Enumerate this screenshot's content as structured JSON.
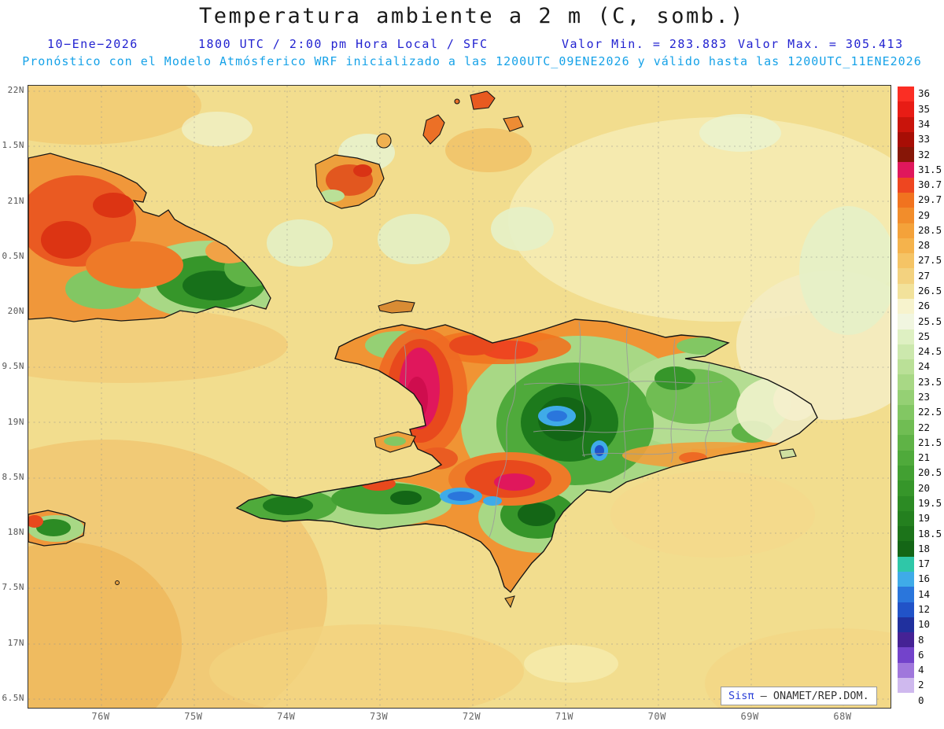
{
  "title": "Temperatura ambiente a 2 m (C, somb.)",
  "header": {
    "date": "10−Ene−2026",
    "run_info": "1800 UTC / 2:00 pm Hora Local / SFC",
    "min_value": "Valor Min. = 283.883",
    "max_value": "Valor Max. = 305.413",
    "model_info": "Pronóstico con el Modelo Atmósferico WRF inicializado a las 1200UTC_09ENE2026 y válido hasta las 1200UTC_11ENE2026"
  },
  "axes": {
    "y_ticks": [
      "22N",
      "1.5N",
      "21N",
      "0.5N",
      "20N",
      "9.5N",
      "19N",
      "8.5N",
      "18N",
      "7.5N",
      "17N",
      "6.5N"
    ],
    "x_ticks": [
      "76W",
      "75W",
      "74W",
      "73W",
      "72W",
      "71W",
      "70W",
      "69W",
      "68W"
    ]
  },
  "colorbar": {
    "units": "C",
    "levels": [
      {
        "label": "36",
        "color": "#fb2e24"
      },
      {
        "label": "35",
        "color": "#e81c15"
      },
      {
        "label": "34",
        "color": "#c9140b"
      },
      {
        "label": "33",
        "color": "#a70e05"
      },
      {
        "label": "32",
        "color": "#871607"
      },
      {
        "label": "31.5",
        "color": "#e0175c"
      },
      {
        "label": "30.7",
        "color": "#ee4620"
      },
      {
        "label": "29.7",
        "color": "#f1731f"
      },
      {
        "label": "29",
        "color": "#f28d2b"
      },
      {
        "label": "28.5",
        "color": "#f4a23a"
      },
      {
        "label": "28",
        "color": "#f5b34c"
      },
      {
        "label": "27.5",
        "color": "#f5c465"
      },
      {
        "label": "27",
        "color": "#f3d27f"
      },
      {
        "label": "26.5",
        "color": "#f2e29b"
      },
      {
        "label": "26",
        "color": "#f7f3cd"
      },
      {
        "label": "25.5",
        "color": "#f1f6e0"
      },
      {
        "label": "25",
        "color": "#def0c2"
      },
      {
        "label": "24.5",
        "color": "#cce8ad"
      },
      {
        "label": "24",
        "color": "#bae097"
      },
      {
        "label": "23.5",
        "color": "#a8d885"
      },
      {
        "label": "23",
        "color": "#95d074"
      },
      {
        "label": "22.5",
        "color": "#82c763"
      },
      {
        "label": "22",
        "color": "#70bd53"
      },
      {
        "label": "21.5",
        "color": "#5fb346"
      },
      {
        "label": "21",
        "color": "#4faa3b"
      },
      {
        "label": "20.5",
        "color": "#42a032"
      },
      {
        "label": "20",
        "color": "#36962a"
      },
      {
        "label": "19.5",
        "color": "#2c8b24"
      },
      {
        "label": "19",
        "color": "#24801f"
      },
      {
        "label": "18.5",
        "color": "#1c741a"
      },
      {
        "label": "18",
        "color": "#146616"
      },
      {
        "label": "17",
        "color": "#2fc7a8"
      },
      {
        "label": "16",
        "color": "#3fabe8"
      },
      {
        "label": "14",
        "color": "#2a76dc"
      },
      {
        "label": "12",
        "color": "#2153c8"
      },
      {
        "label": "10",
        "color": "#20309e"
      },
      {
        "label": "8",
        "color": "#452295"
      },
      {
        "label": "6",
        "color": "#7343cb"
      },
      {
        "label": "4",
        "color": "#a077dc"
      },
      {
        "label": "2",
        "color": "#cfb9ee"
      },
      {
        "label": "0",
        "color": "#ffffff"
      }
    ]
  },
  "watermark": {
    "brand": "Sisπ",
    "text": " – ONAMET/REP.DOM."
  },
  "chart_data": {
    "type": "heatmap",
    "title": "Temperatura ambiente a 2 m (C, somb.)",
    "valid_line": "10-Ene-2026 1800 UTC / 2:00 pm Hora Local / SFC",
    "valor_min": 283.883,
    "valor_max": 305.413,
    "scale_levels_c": [
      0,
      2,
      4,
      6,
      8,
      10,
      12,
      14,
      16,
      17,
      18,
      18.5,
      19,
      19.5,
      20,
      20.5,
      21,
      21.5,
      22,
      22.5,
      23,
      23.5,
      24,
      24.5,
      25,
      25.5,
      26,
      26.5,
      27,
      27.5,
      28,
      28.5,
      29,
      29.7,
      30.7,
      31.5,
      32,
      33,
      34,
      35,
      36
    ],
    "x_tick_labels": [
      "76W",
      "75W",
      "74W",
      "73W",
      "72W",
      "71W",
      "70W",
      "69W",
      "68W"
    ],
    "y_tick_labels": [
      "22N",
      "1.5N",
      "21N",
      "0.5N",
      "20N",
      "9.5N",
      "19N",
      "8.5N",
      "18N",
      "7.5N",
      "17N",
      "6.5N"
    ],
    "legend_position": "right"
  }
}
